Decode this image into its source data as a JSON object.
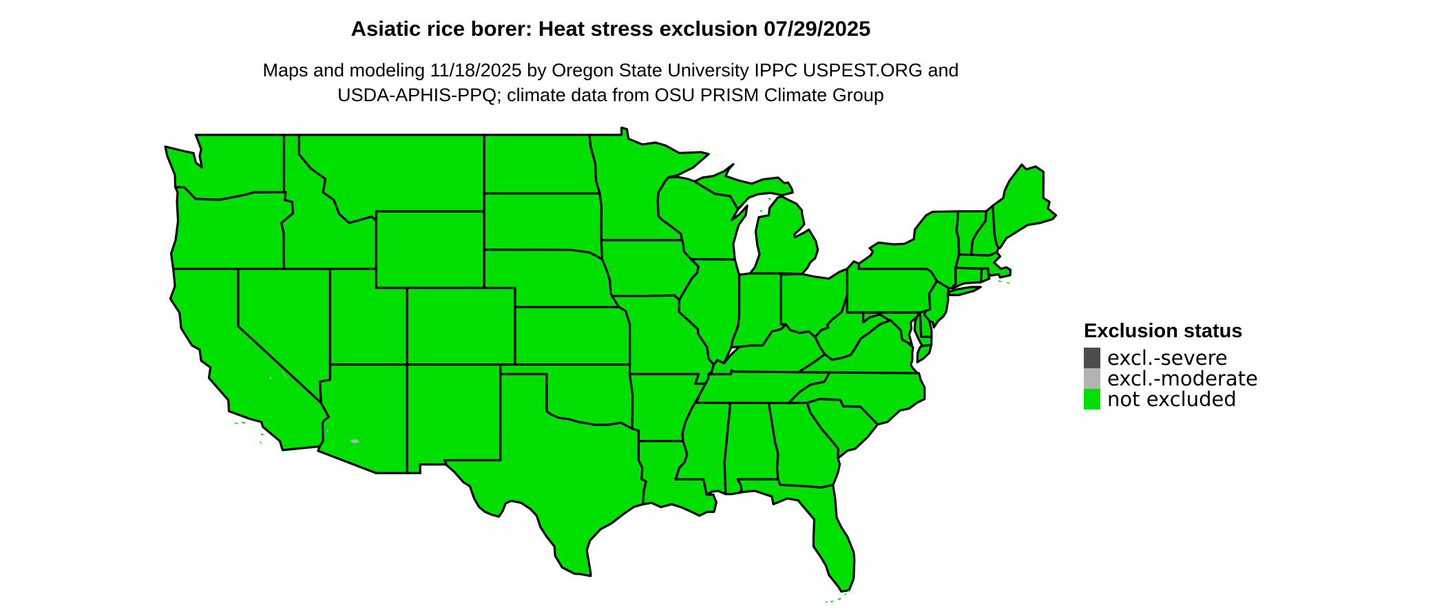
{
  "title": "Asiatic rice borer: Heat stress exclusion 07/29/2025",
  "subtitle_line1": "Maps and modeling 11/18/2025 by Oregon State University IPPC USPEST.ORG and",
  "subtitle_line2": "USDA-APHIS-PPQ; climate data from OSU PRISM Climate Group",
  "legend": {
    "title": "Exclusion status",
    "items": [
      {
        "label": "excl.-severe",
        "color": "#4d4d4d"
      },
      {
        "label": "excl.-moderate",
        "color": "#b3b3b3"
      },
      {
        "label": "not excluded",
        "color": "#00e000"
      }
    ]
  },
  "map": {
    "fill_color": "#00e000",
    "border_color": "#000000",
    "moderate_patch_color": "#b3b3b3"
  }
}
